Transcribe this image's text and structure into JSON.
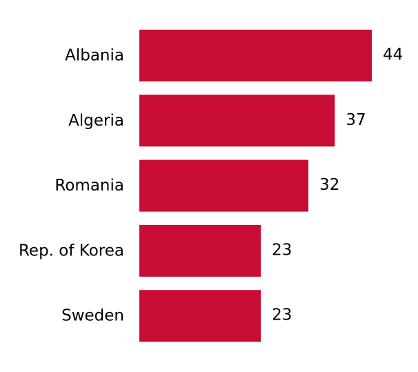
{
  "chart_data": {
    "type": "bar",
    "orientation": "horizontal",
    "title": "",
    "xlabel": "",
    "ylabel": "",
    "categories": [
      "Albania",
      "Algeria",
      "Romania",
      "Rep. of Korea",
      "Sweden"
    ],
    "values": [
      44,
      37,
      32,
      23,
      23
    ],
    "value_labels": [
      "44",
      "37",
      "32",
      "23",
      "23"
    ],
    "xlim": [
      0,
      44
    ],
    "grid": false,
    "legend": "none",
    "bar_color": "#c90c33"
  }
}
